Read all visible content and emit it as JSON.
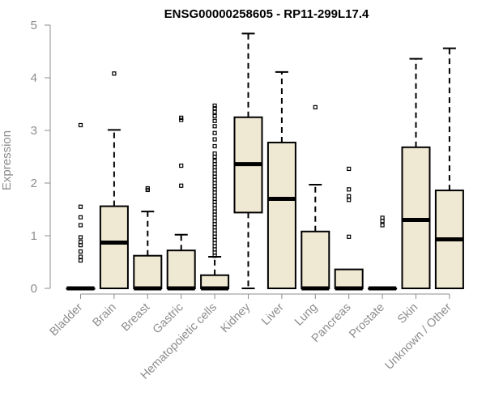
{
  "chart_data": {
    "type": "boxplot",
    "title": "ENSG00000258605 - RP11-299L17.4",
    "xlabel": "",
    "ylabel": "Expression",
    "ylim": [
      0,
      5
    ],
    "yticks": [
      "0",
      "1",
      "2",
      "3",
      "4",
      "5"
    ],
    "fill_color": "#efe9d3",
    "axis_color": "#8c8c8c",
    "categories": [
      "Bladder",
      "Brain",
      "Breast",
      "Gastric",
      "Hematopoietic cells",
      "Kidney",
      "Liver",
      "Lung",
      "Pancreas",
      "Prostate",
      "Skin",
      "Unknown / Other"
    ],
    "boxes": [
      {
        "category": "Bladder",
        "whisker_low": 0,
        "q1": 0,
        "median": 0,
        "q3": 0,
        "whisker_high": 0,
        "outliers": [
          3.1,
          1.55,
          1.35,
          1.2,
          0.97,
          0.88,
          0.82,
          0.7,
          0.6,
          0.53
        ]
      },
      {
        "category": "Brain",
        "whisker_low": 0,
        "q1": 0,
        "median": 0.87,
        "q3": 1.56,
        "whisker_high": 3.01,
        "outliers": [
          4.08
        ]
      },
      {
        "category": "Breast",
        "whisker_low": 0,
        "q1": 0,
        "median": 0,
        "q3": 0.62,
        "whisker_high": 1.46,
        "outliers": [
          1.9,
          1.87
        ]
      },
      {
        "category": "Gastric",
        "whisker_low": 0,
        "q1": 0,
        "median": 0,
        "q3": 0.72,
        "whisker_high": 1.02,
        "outliers": [
          3.24,
          3.2,
          2.33,
          1.95
        ]
      },
      {
        "category": "Hematopoietic cells",
        "whisker_low": 0,
        "q1": 0,
        "median": 0,
        "q3": 0.25,
        "whisker_high": 0.6,
        "outliers": [
          0.62,
          0.68,
          0.74,
          0.8,
          0.86,
          0.92,
          0.98,
          1.04,
          1.1,
          1.16,
          1.22,
          1.28,
          1.34,
          1.4,
          1.46,
          1.52,
          1.58,
          1.64,
          1.7,
          1.76,
          1.82,
          1.88,
          1.94,
          2.0,
          2.06,
          2.12,
          2.18,
          2.24,
          2.3,
          2.36,
          2.42,
          2.5,
          2.56,
          2.7,
          2.83,
          2.95,
          3.08,
          3.18,
          3.27,
          3.35,
          3.42,
          3.47
        ]
      },
      {
        "category": "Kidney",
        "whisker_low": 0,
        "q1": 1.44,
        "median": 2.36,
        "q3": 3.25,
        "whisker_high": 4.84,
        "outliers": []
      },
      {
        "category": "Liver",
        "whisker_low": 0,
        "q1": 0,
        "median": 1.7,
        "q3": 2.77,
        "whisker_high": 4.11,
        "outliers": []
      },
      {
        "category": "Lung",
        "whisker_low": 0,
        "q1": 0,
        "median": 0,
        "q3": 1.08,
        "whisker_high": 1.97,
        "outliers": [
          3.44
        ]
      },
      {
        "category": "Pancreas",
        "whisker_low": 0,
        "q1": 0,
        "median": 0,
        "q3": 0.36,
        "whisker_high": 0.36,
        "outliers": [
          2.27,
          1.88,
          1.75,
          1.68,
          0.98
        ]
      },
      {
        "category": "Prostate",
        "whisker_low": 0,
        "q1": 0,
        "median": 0,
        "q3": 0,
        "whisker_high": 0,
        "outliers": [
          1.34,
          1.28,
          1.2
        ]
      },
      {
        "category": "Skin",
        "whisker_low": 0,
        "q1": 0,
        "median": 1.3,
        "q3": 2.68,
        "whisker_high": 4.36,
        "outliers": []
      },
      {
        "category": "Unknown / Other",
        "whisker_low": 0,
        "q1": 0,
        "median": 0.93,
        "q3": 1.86,
        "whisker_high": 4.56,
        "outliers": []
      }
    ]
  }
}
